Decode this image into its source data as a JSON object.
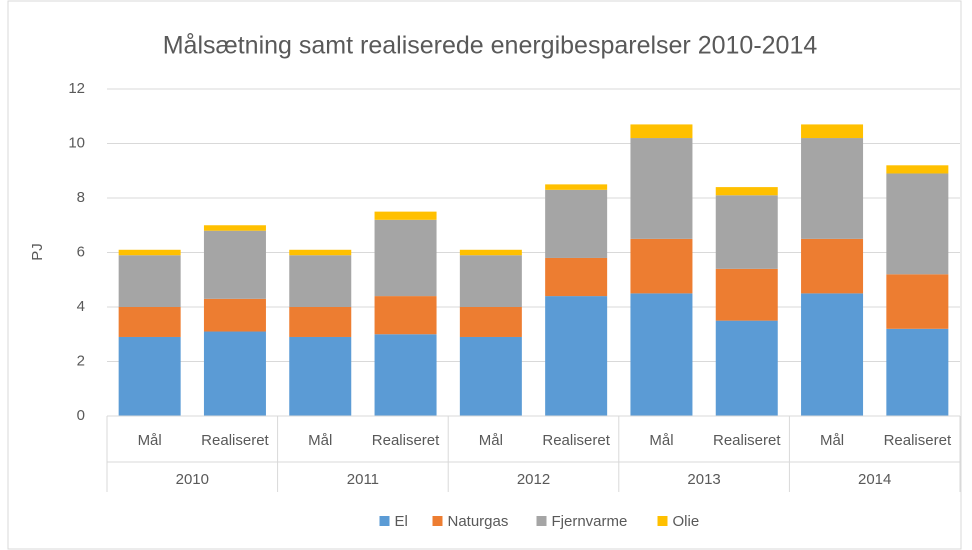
{
  "chart_data": {
    "type": "stacked_bar",
    "title": "Målsætning samt realiserede energibesparelser 2010-2014",
    "y_label": "PJ",
    "categories": [
      "Mål",
      "Realiseret",
      "Mål",
      "Realiseret",
      "Mål",
      "Realiseret",
      "Mål",
      "Realiseret",
      "Mål",
      "Realiseret"
    ],
    "groups": [
      "2010",
      "2011",
      "2012",
      "2013",
      "2014"
    ],
    "series": [
      {
        "name": "El",
        "color": "#5b9bd5",
        "values": [
          2.9,
          3.1,
          2.9,
          3.0,
          2.9,
          4.4,
          4.5,
          3.5,
          4.5,
          3.2
        ]
      },
      {
        "name": "Naturgas",
        "color": "#ed7d31",
        "values": [
          1.1,
          1.2,
          1.1,
          1.4,
          1.1,
          1.4,
          2.0,
          1.9,
          2.0,
          2.0
        ]
      },
      {
        "name": "Fjernvarme",
        "color": "#a5a5a5",
        "values": [
          1.9,
          2.5,
          1.9,
          2.8,
          1.9,
          2.5,
          3.7,
          2.7,
          3.7,
          3.7
        ]
      },
      {
        "name": "Olie",
        "color": "#ffc000",
        "values": [
          0.2,
          0.2,
          0.2,
          0.3,
          0.2,
          0.2,
          0.5,
          0.3,
          0.5,
          0.3
        ]
      }
    ],
    "ylim": [
      0,
      12
    ],
    "yticks": [
      0,
      2,
      4,
      6,
      8,
      10,
      12
    ],
    "grid": true,
    "legend": "bottom"
  }
}
